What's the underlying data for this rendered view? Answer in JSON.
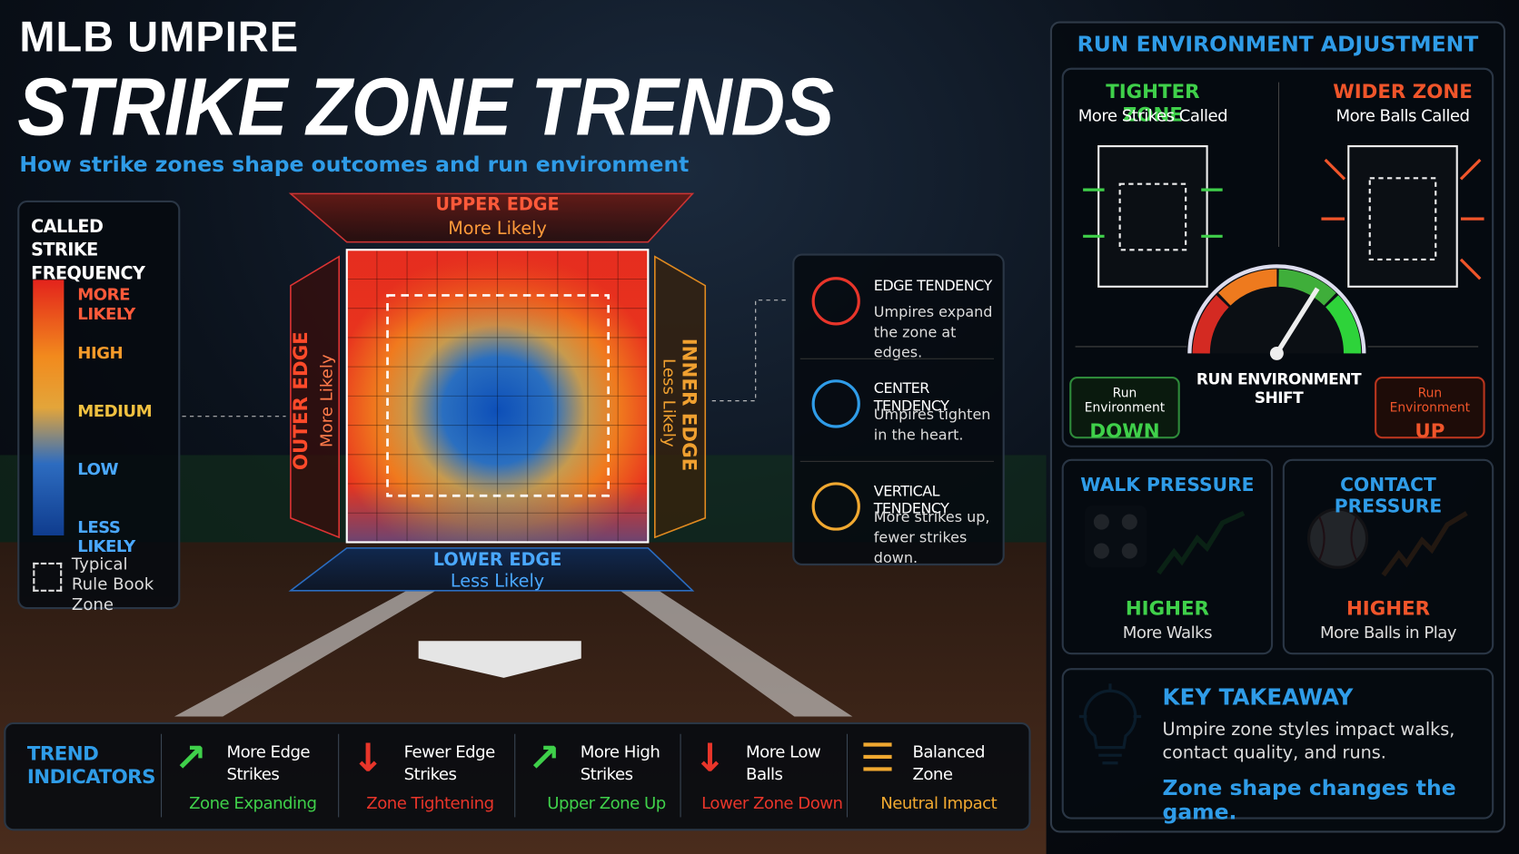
{
  "header": {
    "kicker": "MLB UMPIRE",
    "title": "STRIKE ZONE TRENDS",
    "subtitle": "How strike zones shape outcomes and run environment"
  },
  "legend": {
    "title": "CALLED STRIKE FREQUENCY",
    "levels": [
      "MORE LIKELY",
      "HIGH",
      "MEDIUM",
      "LOW",
      "LESS LIKELY"
    ],
    "rule_book": "Typical Rule Book Zone"
  },
  "zone": {
    "upper": {
      "label": "UPPER EDGE",
      "note": "More Likely"
    },
    "lower": {
      "label": "LOWER EDGE",
      "note": "Less Likely"
    },
    "outer": {
      "label": "OUTER EDGE",
      "note": "More Likely"
    },
    "inner": {
      "label": "INNER EDGE",
      "note": "Less Likely"
    }
  },
  "tendencies": [
    {
      "title": "EDGE TENDENCY",
      "text": "Umpires expand the zone at edges."
    },
    {
      "title": "CENTER TENDENCY",
      "text": "Umpires tighten in the heart."
    },
    {
      "title": "VERTICAL TENDENCY",
      "text": "More strikes up, fewer strikes down."
    }
  ],
  "trends": {
    "title": "TREND INDICATORS",
    "items": [
      {
        "label": "More Edge Strikes",
        "effect": "Zone Expanding"
      },
      {
        "label": "Fewer Edge Strikes",
        "effect": "Zone Tightening"
      },
      {
        "label": "More High Strikes",
        "effect": "Upper Zone Up"
      },
      {
        "label": "More Low Balls",
        "effect": "Lower Zone Down"
      },
      {
        "label": "Balanced Zone",
        "effect": "Neutral Impact"
      }
    ]
  },
  "run_environment": {
    "title": "RUN ENVIRONMENT ADJUSTMENT",
    "tighter": {
      "title": "TIGHTER ZONE",
      "note": "More Strikes Called"
    },
    "wider": {
      "title": "WIDER ZONE",
      "note": "More Balls Called"
    },
    "gauge": "RUN ENVIRONMENT SHIFT",
    "down": {
      "label": "Run Environment",
      "value": "DOWN"
    },
    "up": {
      "label": "Run Environment",
      "value": "UP"
    }
  },
  "pressures": [
    {
      "title": "WALK PRESSURE",
      "level": "HIGHER",
      "note": "More Walks"
    },
    {
      "title": "CONTACT PRESSURE",
      "level": "HIGHER",
      "note": "More Balls in Play"
    }
  ],
  "takeaway": {
    "title": "KEY TAKEAWAY",
    "text": "Umpire zone styles impact walks, contact quality, and runs.",
    "emphasis": "Zone shape changes the game."
  }
}
